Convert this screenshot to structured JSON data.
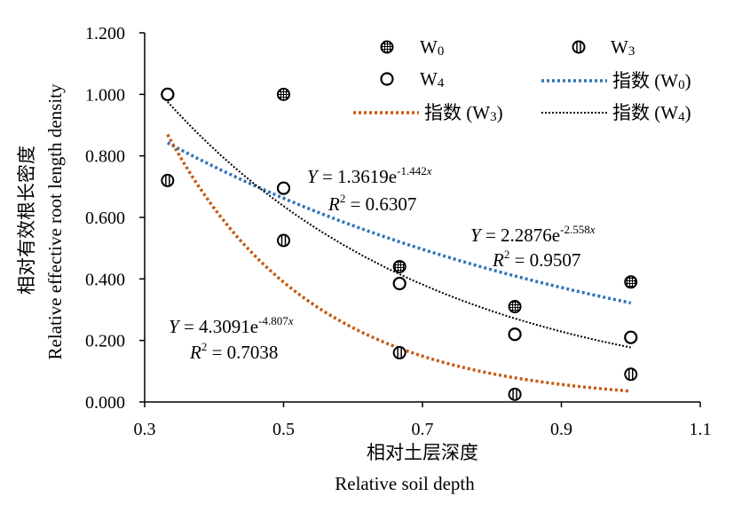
{
  "chart_data": {
    "type": "scatter",
    "title": "",
    "xlabel_cn": "相对土层深度",
    "xlabel": "Relative soil depth",
    "ylabel_cn": "相对有效根长密度",
    "ylabel": "Relative effective root length density",
    "xlim": [
      0.3,
      1.1
    ],
    "ylim": [
      0,
      1.2
    ],
    "x_ticks": [
      "0.3",
      "0.5",
      "0.7",
      "0.9",
      "1.1"
    ],
    "y_ticks": [
      "0.000",
      "0.200",
      "0.400",
      "0.600",
      "0.800",
      "1.000",
      "1.200"
    ],
    "grid": false,
    "legend_position": "top-right",
    "series": [
      {
        "name": "W0",
        "label_main": "W",
        "label_sub": "0",
        "marker": "hatched-circle",
        "color": "#000000",
        "points": [
          [
            0.333,
            1.0
          ],
          [
            0.5,
            1.0
          ],
          [
            0.667,
            0.44
          ],
          [
            0.833,
            0.31
          ],
          [
            1.0,
            0.39
          ]
        ]
      },
      {
        "name": "W3",
        "label_main": "W",
        "label_sub": "3",
        "marker": "striped-circle",
        "color": "#000000",
        "points": [
          [
            0.333,
            0.72
          ],
          [
            0.5,
            0.525
          ],
          [
            0.667,
            0.16
          ],
          [
            0.833,
            0.025
          ],
          [
            1.0,
            0.09
          ]
        ]
      },
      {
        "name": "W4",
        "label_main": "W",
        "label_sub": "4",
        "marker": "open-circle",
        "color": "#000000",
        "points": [
          [
            0.333,
            1.0
          ],
          [
            0.5,
            0.695
          ],
          [
            0.667,
            0.385
          ],
          [
            0.833,
            0.22
          ],
          [
            1.0,
            0.21
          ]
        ]
      }
    ],
    "trendlines": [
      {
        "name": "指数 (W0)",
        "label_prefix": "指数 (W",
        "label_sub": "0",
        "label_suffix": ")",
        "color": "#2e75b6",
        "a": 1.3619,
        "b": -1.442,
        "x_range": [
          0.333,
          1.0
        ],
        "equation_lhs": "Y",
        "equation_coef": " = 1.3619e",
        "equation_exp_num": "-1.442",
        "equation_exp_var": "x",
        "r2_label": "R",
        "r2_sup": "2",
        "r2_value": " = 0.6307"
      },
      {
        "name": "指数 (W3)",
        "label_prefix": "指数 (W",
        "label_sub": "3",
        "label_suffix": ")",
        "color": "#c55a11",
        "a": 4.3091,
        "b": -4.807,
        "x_range": [
          0.333,
          1.0
        ],
        "equation_lhs": "Y",
        "equation_coef": " = 4.3091e",
        "equation_exp_num": "-4.807",
        "equation_exp_var": "x",
        "r2_label": "R",
        "r2_sup": "2",
        "r2_value": " = 0.7038"
      },
      {
        "name": "指数 (W4)",
        "label_prefix": "指数 (W",
        "label_sub": "4",
        "label_suffix": ")",
        "color": "#000000",
        "a": 2.2876,
        "b": -2.558,
        "x_range": [
          0.333,
          1.0
        ],
        "equation_lhs": "Y",
        "equation_coef": " = 2.2876e",
        "equation_exp_num": "-2.558",
        "equation_exp_var": "x",
        "r2_label": "R",
        "r2_sup": "2",
        "r2_value": " = 0.9507"
      }
    ]
  }
}
